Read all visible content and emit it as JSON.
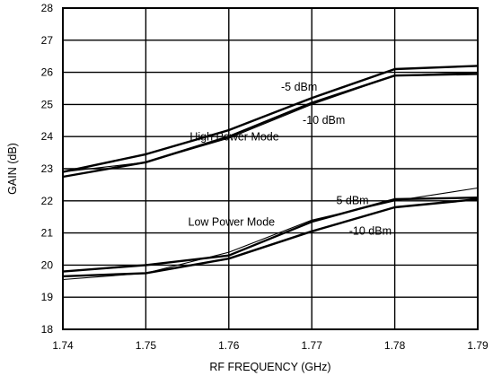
{
  "chart_data": {
    "type": "line",
    "title": "",
    "xlabel": "RF FREQUENCY (GHz)",
    "ylabel": "GAIN (dB)",
    "xlim": [
      1.74,
      1.79
    ],
    "ylim": [
      18,
      28
    ],
    "grid": true,
    "x_ticks": [
      "1.74",
      "1.75",
      "1.76",
      "1.77",
      "1.78",
      "1.79"
    ],
    "y_ticks": [
      "18",
      "19",
      "20",
      "21",
      "22",
      "23",
      "24",
      "25",
      "26",
      "27",
      "28"
    ],
    "series": [
      {
        "mode": "High Power Mode",
        "name": "-5 dBm",
        "weight": "thick",
        "x": [
          1.74,
          1.75,
          1.76,
          1.77,
          1.78,
          1.79
        ],
        "y": [
          22.9,
          23.45,
          24.2,
          25.2,
          26.1,
          26.2
        ]
      },
      {
        "mode": "High Power Mode",
        "name": "-10 dBm",
        "weight": "thin",
        "x": [
          1.74,
          1.75,
          1.76,
          1.77,
          1.78,
          1.79
        ],
        "y": [
          22.9,
          23.2,
          23.95,
          25.0,
          25.9,
          26.0
        ]
      },
      {
        "mode": "High Power Mode",
        "name": "-10 dBm",
        "weight": "thick",
        "x": [
          1.74,
          1.75,
          1.76,
          1.77,
          1.78,
          1.79
        ],
        "y": [
          22.75,
          23.2,
          24.0,
          25.05,
          25.9,
          25.95
        ]
      },
      {
        "mode": "Low Power Mode",
        "name": "-5 dBm",
        "weight": "thin",
        "x": [
          1.74,
          1.75,
          1.76,
          1.77,
          1.78,
          1.79
        ],
        "y": [
          19.55,
          19.75,
          20.4,
          21.4,
          22.0,
          22.4
        ]
      },
      {
        "mode": "Low Power Mode",
        "name": "-5 dBm",
        "weight": "thick",
        "x": [
          1.74,
          1.75,
          1.76,
          1.77,
          1.78,
          1.79
        ],
        "y": [
          19.8,
          20.0,
          20.3,
          21.35,
          22.05,
          22.1
        ]
      },
      {
        "mode": "Low Power Mode",
        "name": "-10 dBm",
        "weight": "thick",
        "x": [
          1.74,
          1.75,
          1.76,
          1.77,
          1.78,
          1.79
        ],
        "y": [
          19.65,
          19.75,
          20.2,
          21.05,
          21.8,
          22.05
        ]
      }
    ],
    "annotations": [
      {
        "text": "High Power Mode",
        "x": 1.7553,
        "y": 23.88,
        "anchor": "start"
      },
      {
        "text": "-5 dBm",
        "x": 1.7663,
        "y": 25.43,
        "anchor": "start"
      },
      {
        "text": "-10 dBm",
        "x": 1.7689,
        "y": 24.4,
        "anchor": "start"
      },
      {
        "text": "Low Power Mode",
        "x": 1.7551,
        "y": 21.23,
        "anchor": "start"
      },
      {
        "text": "-5 dBm",
        "x": 1.7725,
        "y": 21.9,
        "anchor": "start"
      },
      {
        "text": "-10 dBm",
        "x": 1.7745,
        "y": 20.95,
        "anchor": "start"
      }
    ]
  }
}
